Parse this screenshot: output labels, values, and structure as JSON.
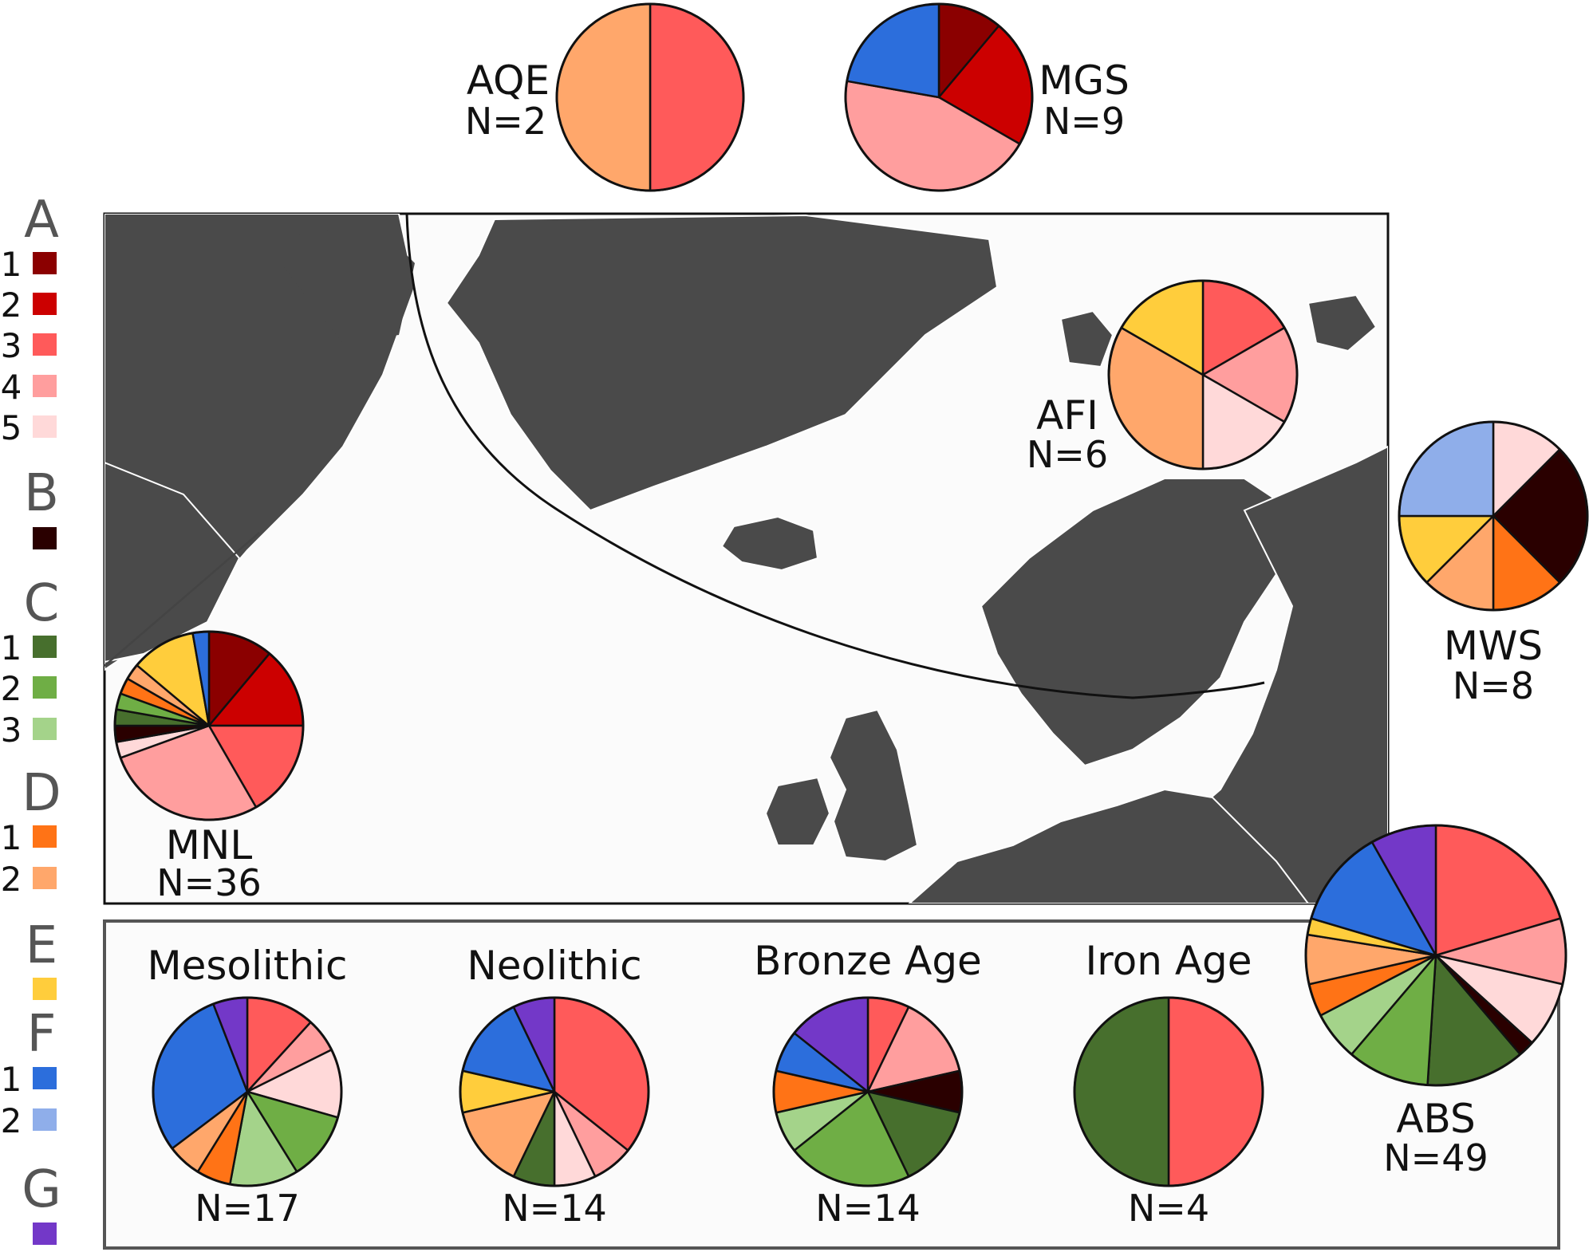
{
  "colors": {
    "A1": "#8b0000",
    "A2": "#cc0000",
    "A3": "#ff5a5a",
    "A4": "#ff9e9e",
    "A5": "#ffd9d9",
    "B": "#2a0000",
    "C1": "#476f2d",
    "C2": "#6fae45",
    "C3": "#a4d38a",
    "D1": "#ff7316",
    "D2": "#ffa76b",
    "E": "#ffcd3c",
    "F1": "#2c6edc",
    "F2": "#8faeea",
    "G": "#7338c8"
  },
  "legend": [
    {
      "group": "A",
      "items": [
        {
          "label": "1",
          "key": "A1"
        },
        {
          "label": "2",
          "key": "A2"
        },
        {
          "label": "3",
          "key": "A3"
        },
        {
          "label": "4",
          "key": "A4"
        },
        {
          "label": "5",
          "key": "A5"
        }
      ]
    },
    {
      "group": "B",
      "items": [
        {
          "label": "",
          "key": "B"
        }
      ]
    },
    {
      "group": "C",
      "items": [
        {
          "label": "1",
          "key": "C1"
        },
        {
          "label": "2",
          "key": "C2"
        },
        {
          "label": "3",
          "key": "C3"
        }
      ]
    },
    {
      "group": "D",
      "items": [
        {
          "label": "1",
          "key": "D1"
        },
        {
          "label": "2",
          "key": "D2"
        }
      ]
    },
    {
      "group": "E",
      "items": [
        {
          "label": "",
          "key": "E"
        }
      ]
    },
    {
      "group": "F",
      "items": [
        {
          "label": "1",
          "key": "F1"
        },
        {
          "label": "2",
          "key": "F2"
        }
      ]
    },
    {
      "group": "G",
      "items": [
        {
          "label": "",
          "key": "G"
        }
      ]
    }
  ],
  "chart_data": {
    "type": "pie",
    "pies": [
      {
        "id": "AQE",
        "label": "AQE",
        "n_label": "N=2",
        "slices": [
          {
            "key": "A3",
            "value": 1
          },
          {
            "key": "D2",
            "value": 1
          }
        ]
      },
      {
        "id": "MGS",
        "label": "MGS",
        "n_label": "N=9",
        "slices": [
          {
            "key": "A1",
            "value": 1
          },
          {
            "key": "A2",
            "value": 2
          },
          {
            "key": "A4",
            "value": 4
          },
          {
            "key": "F1",
            "value": 2
          }
        ]
      },
      {
        "id": "AFI",
        "label": "AFI",
        "n_label": "N=6",
        "slices": [
          {
            "key": "A3",
            "value": 1
          },
          {
            "key": "A4",
            "value": 1
          },
          {
            "key": "A5",
            "value": 1
          },
          {
            "key": "D2",
            "value": 2
          },
          {
            "key": "E",
            "value": 1
          }
        ]
      },
      {
        "id": "MWS",
        "label": "MWS",
        "n_label": "N=8",
        "slices": [
          {
            "key": "A5",
            "value": 1
          },
          {
            "key": "B",
            "value": 2
          },
          {
            "key": "D1",
            "value": 1
          },
          {
            "key": "D2",
            "value": 1
          },
          {
            "key": "E",
            "value": 1
          },
          {
            "key": "F2",
            "value": 2
          }
        ]
      },
      {
        "id": "MNL",
        "label": "MNL",
        "n_label": "N=36",
        "slices": [
          {
            "key": "A1",
            "value": 4
          },
          {
            "key": "A2",
            "value": 5
          },
          {
            "key": "A3",
            "value": 6
          },
          {
            "key": "A4",
            "value": 10
          },
          {
            "key": "A5",
            "value": 1
          },
          {
            "key": "B",
            "value": 1
          },
          {
            "key": "C1",
            "value": 1
          },
          {
            "key": "C2",
            "value": 1
          },
          {
            "key": "D1",
            "value": 1
          },
          {
            "key": "D2",
            "value": 1
          },
          {
            "key": "E",
            "value": 4
          },
          {
            "key": "F1",
            "value": 1
          }
        ]
      },
      {
        "id": "ABS",
        "label": "ABS",
        "n_label": "N=49",
        "slices": [
          {
            "key": "A3",
            "value": 10
          },
          {
            "key": "A4",
            "value": 4
          },
          {
            "key": "A5",
            "value": 4
          },
          {
            "key": "B",
            "value": 1
          },
          {
            "key": "C1",
            "value": 6
          },
          {
            "key": "C2",
            "value": 5
          },
          {
            "key": "C3",
            "value": 3
          },
          {
            "key": "D1",
            "value": 2
          },
          {
            "key": "D2",
            "value": 3
          },
          {
            "key": "E",
            "value": 1
          },
          {
            "key": "F1",
            "value": 6
          },
          {
            "key": "G",
            "value": 4
          }
        ]
      },
      {
        "id": "mesolithic",
        "label": "Mesolithic",
        "n_label": "N=17",
        "slices": [
          {
            "key": "A3",
            "value": 2
          },
          {
            "key": "A4",
            "value": 1
          },
          {
            "key": "A5",
            "value": 2
          },
          {
            "key": "C2",
            "value": 2
          },
          {
            "key": "C3",
            "value": 2
          },
          {
            "key": "D1",
            "value": 1
          },
          {
            "key": "D2",
            "value": 1
          },
          {
            "key": "F1",
            "value": 5
          },
          {
            "key": "G",
            "value": 1
          }
        ]
      },
      {
        "id": "neolithic",
        "label": "Neolithic",
        "n_label": "N=14",
        "slices": [
          {
            "key": "A3",
            "value": 5
          },
          {
            "key": "A4",
            "value": 1
          },
          {
            "key": "A5",
            "value": 1
          },
          {
            "key": "C1",
            "value": 1
          },
          {
            "key": "D2",
            "value": 2
          },
          {
            "key": "E",
            "value": 1
          },
          {
            "key": "F1",
            "value": 2
          },
          {
            "key": "G",
            "value": 1
          }
        ]
      },
      {
        "id": "bronze",
        "label": "Bronze Age",
        "n_label": "N=14",
        "slices": [
          {
            "key": "A3",
            "value": 1
          },
          {
            "key": "A4",
            "value": 2
          },
          {
            "key": "B",
            "value": 1
          },
          {
            "key": "C1",
            "value": 2
          },
          {
            "key": "C2",
            "value": 3
          },
          {
            "key": "C3",
            "value": 1
          },
          {
            "key": "D1",
            "value": 1
          },
          {
            "key": "F1",
            "value": 1
          },
          {
            "key": "G",
            "value": 2
          }
        ]
      },
      {
        "id": "iron",
        "label": "Iron Age",
        "n_label": "N=4",
        "slices": [
          {
            "key": "A3",
            "value": 2
          },
          {
            "key": "C1",
            "value": 2
          }
        ]
      }
    ]
  }
}
